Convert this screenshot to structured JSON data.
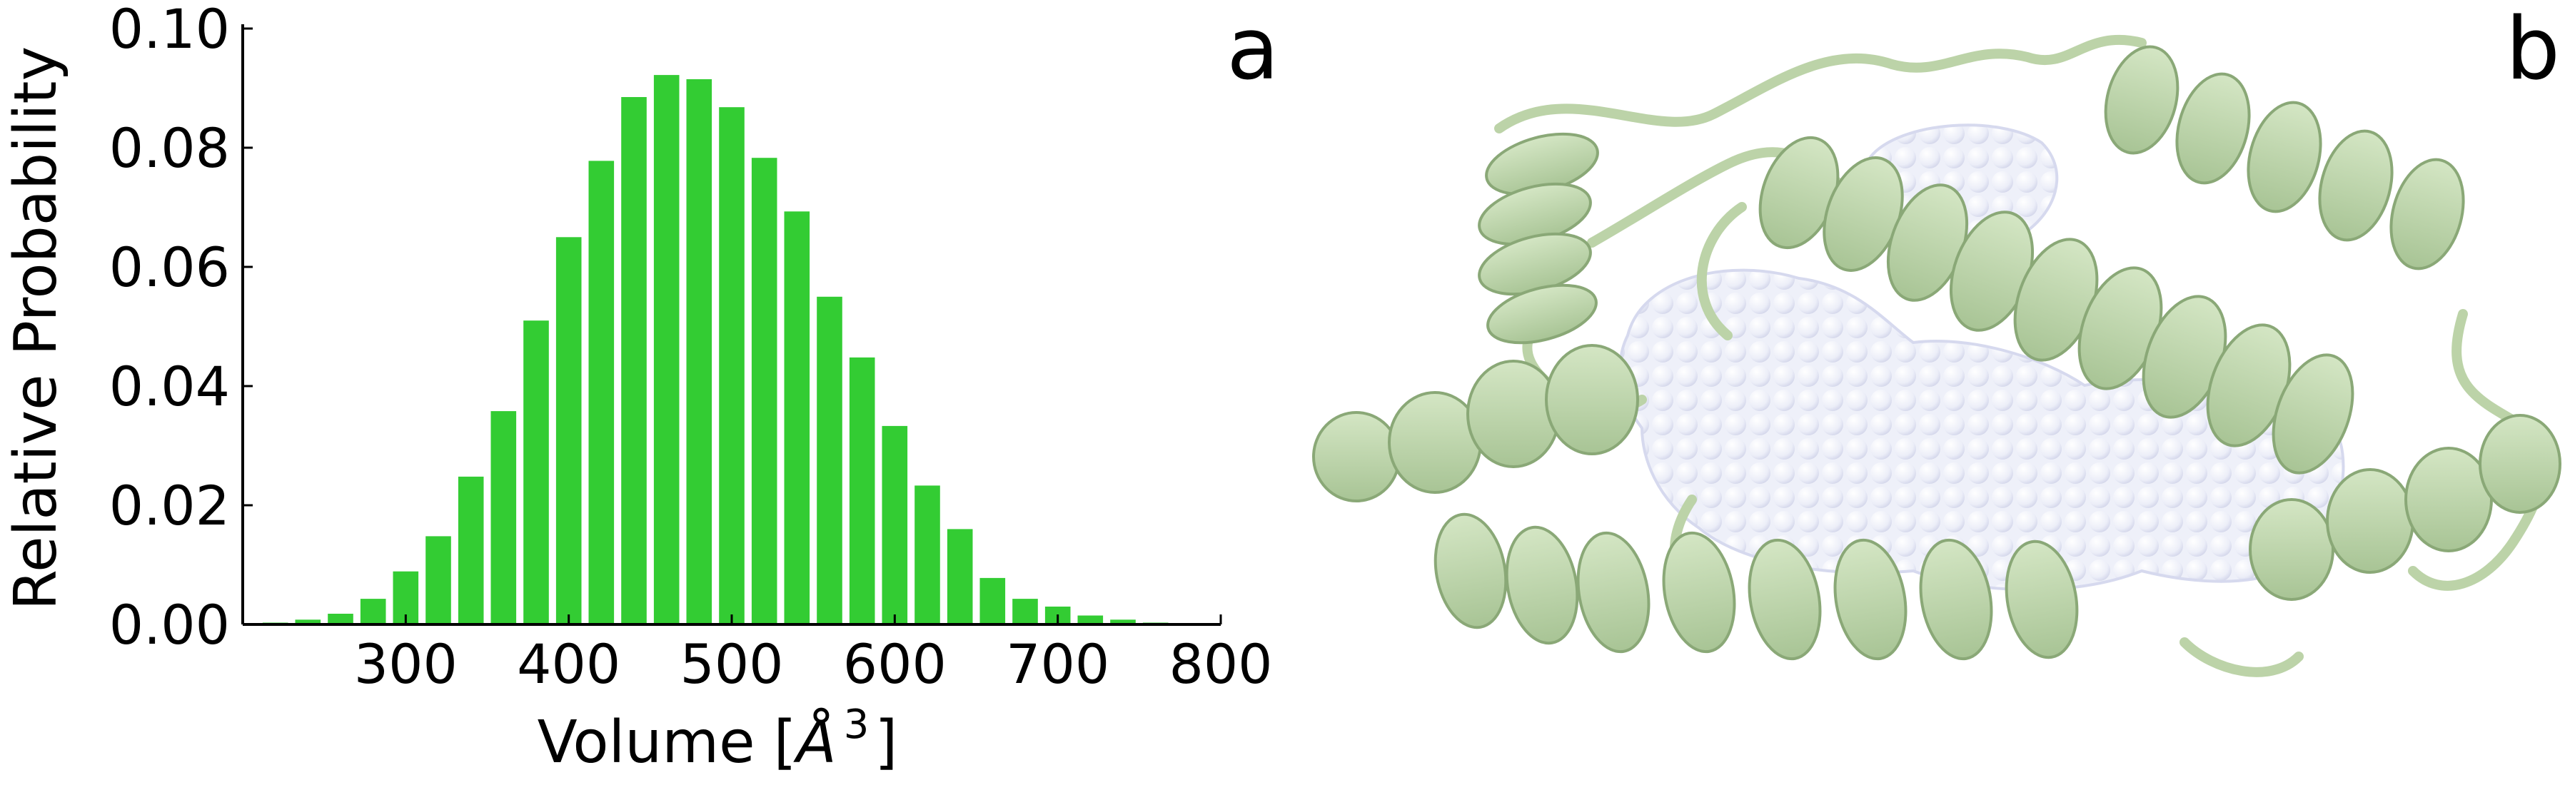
{
  "panels": {
    "a": {
      "label": "a"
    },
    "b": {
      "label": "b"
    }
  },
  "colors": {
    "bar": "#33cc33",
    "helix": "#c2d9b0",
    "helix_edge": "#8aa877",
    "cavity": "#eef0fa",
    "cavity_edge": "#d6d9ee"
  },
  "chart_data": {
    "type": "bar",
    "xlabel_prefix": "Volume [",
    "xlabel_symbol": "Å",
    "xlabel_power": "3",
    "xlabel_suffix": "]",
    "ylabel": "Relative Probability",
    "xlim": [
      200,
      800
    ],
    "ylim": [
      0,
      0.1
    ],
    "xticks": [
      300,
      400,
      500,
      600,
      700,
      800
    ],
    "yticks": [
      "0.00",
      "0.02",
      "0.04",
      "0.06",
      "0.08",
      "0.10"
    ],
    "bin_width": 20,
    "x": [
      220,
      240,
      260,
      280,
      300,
      320,
      340,
      360,
      380,
      400,
      420,
      440,
      460,
      480,
      500,
      520,
      540,
      560,
      580,
      600,
      620,
      640,
      660,
      680,
      700,
      720,
      740,
      760,
      780
    ],
    "values": [
      0.0003,
      0.0008,
      0.0018,
      0.0043,
      0.0089,
      0.0148,
      0.0248,
      0.0358,
      0.051,
      0.065,
      0.0778,
      0.0885,
      0.0922,
      0.0915,
      0.0868,
      0.0783,
      0.0693,
      0.055,
      0.0448,
      0.0333,
      0.0233,
      0.016,
      0.0078,
      0.0043,
      0.003,
      0.0015,
      0.0008,
      0.0003,
      0.0001
    ]
  }
}
